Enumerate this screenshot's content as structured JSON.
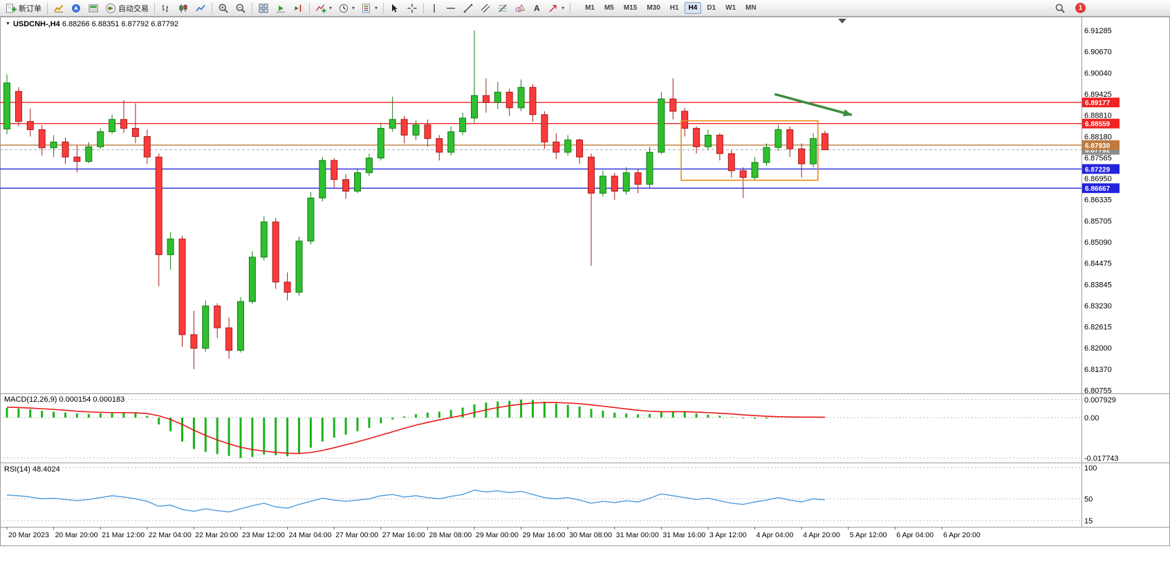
{
  "toolbar": {
    "buttons": {
      "new_order": "新订单",
      "autotrading": "自动交易"
    },
    "timeframes": [
      "M1",
      "M5",
      "M15",
      "M30",
      "H1",
      "H4",
      "D1",
      "W1",
      "MN"
    ],
    "active_timeframe": "H4",
    "notification_badge": "1"
  },
  "chart_title": {
    "symbol": "USDCNH-,H4",
    "ohlc": "6.88266 6.88351 6.87792 6.87792"
  },
  "indicators": {
    "macd_label": "MACD(12,26,9) 0.000154 0.000183",
    "rsi_label": "RSI(14) 48.4024"
  },
  "colors": {
    "up": "#2fbf2f",
    "up_stroke": "#157a15",
    "down": "#fb3b3b",
    "down_stroke": "#a61b1b",
    "resistance": "#f02222",
    "support": "#2323dd",
    "mid_line": "#c07a3e",
    "box": "#eb8a16",
    "arrow": "#3d8b3d",
    "macd_hist": "#19b219",
    "macd_signal": "#e81717",
    "rsi": "#4f9bdc",
    "bid_label_bg": "#8b8b8b"
  },
  "chart_data": {
    "type": "candlestick",
    "symbol": "USDCNH",
    "timeframe": "H4",
    "price_range": {
      "top": 6.9165,
      "bottom": 6.8068
    },
    "price_axis_labels": [
      "6.91285",
      "6.90670",
      "6.90040",
      "6.89425",
      "6.88810",
      "6.88180",
      "6.87565",
      "6.86950",
      "6.86335",
      "6.85705",
      "6.85090",
      "6.84475",
      "6.83845",
      "6.83230",
      "6.82615",
      "6.82000",
      "6.81370",
      "6.80755"
    ],
    "time_labels": [
      "20 Mar 2023",
      "20 Mar 20:00",
      "21 Mar 12:00",
      "22 Mar 04:00",
      "22 Mar 20:00",
      "23 Mar 12:00",
      "24 Mar 04:00",
      "27 Mar 00:00",
      "27 Mar 16:00",
      "28 Mar 08:00",
      "29 Mar 00:00",
      "29 Mar 16:00",
      "30 Mar 08:00",
      "31 Mar 00:00",
      "31 Mar 16:00",
      "3 Apr 12:00",
      "4 Apr 04:00",
      "4 Apr 20:00",
      "5 Apr 12:00",
      "6 Apr 04:00",
      "6 Apr 20:00"
    ],
    "candles": [
      [
        6.884,
        6.9,
        6.8825,
        6.8975
      ],
      [
        6.895,
        6.8962,
        6.8848,
        6.8862
      ],
      [
        6.8862,
        6.89,
        6.8818,
        6.8838
      ],
      [
        6.8838,
        6.8852,
        6.8762,
        6.8785
      ],
      [
        6.8785,
        6.8822,
        6.8758,
        6.8802
      ],
      [
        6.8802,
        6.8815,
        6.8738,
        6.8758
      ],
      [
        6.8758,
        6.8792,
        6.8713,
        6.8745
      ],
      [
        6.8745,
        6.8802,
        6.874,
        6.8788
      ],
      [
        6.8788,
        6.8842,
        6.8782,
        6.8832
      ],
      [
        6.8832,
        6.8882,
        6.8826,
        6.8868
      ],
      [
        6.8868,
        6.8925,
        6.8828,
        6.8842
      ],
      [
        6.8842,
        6.8915,
        6.8798,
        6.8818
      ],
      [
        6.8818,
        6.8838,
        6.8738,
        6.8758
      ],
      [
        6.8758,
        6.8768,
        6.838,
        6.8472
      ],
      [
        6.8472,
        6.8538,
        6.8428,
        6.8518
      ],
      [
        6.8518,
        6.8528,
        6.8202,
        6.8238
      ],
      [
        6.8238,
        6.8308,
        6.8137,
        6.8198
      ],
      [
        6.8198,
        6.8338,
        6.8188,
        6.8322
      ],
      [
        6.8322,
        6.833,
        6.8228,
        6.8258
      ],
      [
        6.8258,
        6.8288,
        6.8168,
        6.8192
      ],
      [
        6.8192,
        6.8348,
        6.8186,
        6.8335
      ],
      [
        6.8335,
        6.8482,
        6.8328,
        6.8465
      ],
      [
        6.8465,
        6.8585,
        6.8455,
        6.8568
      ],
      [
        6.8568,
        6.858,
        6.8372,
        6.8392
      ],
      [
        6.8392,
        6.842,
        6.8338,
        6.8362
      ],
      [
        6.8362,
        6.8525,
        6.8352,
        6.8512
      ],
      [
        6.8512,
        6.8655,
        6.8502,
        6.8638
      ],
      [
        6.8638,
        6.8758,
        6.8628,
        6.8748
      ],
      [
        6.8748,
        6.8755,
        6.8668,
        6.8692
      ],
      [
        6.8692,
        6.8708,
        6.8635,
        6.8658
      ],
      [
        6.8658,
        6.8725,
        6.8652,
        6.8712
      ],
      [
        6.8712,
        6.8768,
        6.8702,
        6.8755
      ],
      [
        6.8755,
        6.8858,
        6.8748,
        6.8842
      ],
      [
        6.8842,
        6.8935,
        6.8832,
        6.8868
      ],
      [
        6.8868,
        6.8878,
        6.8798,
        6.8822
      ],
      [
        6.8822,
        6.8865,
        6.8808,
        6.8852
      ],
      [
        6.8852,
        6.8868,
        6.8788,
        6.8812
      ],
      [
        6.8812,
        6.8822,
        6.8748,
        6.8772
      ],
      [
        6.8772,
        6.8848,
        6.8762,
        6.8832
      ],
      [
        6.8832,
        6.8888,
        6.8822,
        6.8872
      ],
      [
        6.8872,
        6.9128,
        6.8858,
        6.8938
      ],
      [
        6.8938,
        6.8988,
        6.8888,
        6.8918
      ],
      [
        6.8918,
        6.8978,
        6.8898,
        6.8948
      ],
      [
        6.8948,
        6.8958,
        6.8878,
        6.8902
      ],
      [
        6.8902,
        6.8985,
        6.8892,
        6.8962
      ],
      [
        6.8962,
        6.8972,
        6.8862,
        6.8882
      ],
      [
        6.8882,
        6.8892,
        6.8782,
        6.8802
      ],
      [
        6.8802,
        6.8828,
        6.8752,
        6.8772
      ],
      [
        6.8772,
        6.8822,
        6.8762,
        6.8808
      ],
      [
        6.8808,
        6.8812,
        6.8738,
        6.8758
      ],
      [
        6.8758,
        6.8768,
        6.844,
        6.8652
      ],
      [
        6.8652,
        6.8718,
        6.8642,
        6.8702
      ],
      [
        6.8702,
        6.8712,
        6.8633,
        6.8658
      ],
      [
        6.8658,
        6.8728,
        6.8648,
        6.8712
      ],
      [
        6.8712,
        6.8722,
        6.8652,
        6.8678
      ],
      [
        6.8678,
        6.8788,
        6.8668,
        6.8772
      ],
      [
        6.8772,
        6.8948,
        6.8766,
        6.8928
      ],
      [
        6.8928,
        6.8988,
        6.8868,
        6.8892
      ],
      [
        6.8892,
        6.8902,
        6.8818,
        6.8842
      ],
      [
        6.8842,
        6.8848,
        6.8768,
        6.8788
      ],
      [
        6.8788,
        6.8838,
        6.8778,
        6.8822
      ],
      [
        6.8822,
        6.8828,
        6.8748,
        6.8768
      ],
      [
        6.8768,
        6.8778,
        6.8698,
        6.8718
      ],
      [
        6.8718,
        6.8728,
        6.8638,
        6.8698
      ],
      [
        6.8698,
        6.8758,
        6.8688,
        6.8742
      ],
      [
        6.8742,
        6.8798,
        6.8732,
        6.8786
      ],
      [
        6.8786,
        6.8852,
        6.8776,
        6.8838
      ],
      [
        6.8838,
        6.8848,
        6.8758,
        6.8782
      ],
      [
        6.8782,
        6.8798,
        6.8698,
        6.8738
      ],
      [
        6.8738,
        6.8828,
        6.8728,
        6.8812
      ],
      [
        6.88266,
        6.88351,
        6.87792,
        6.87792
      ]
    ],
    "hlines": [
      {
        "price": 6.89177,
        "label": "6.89177",
        "color": "#f02222"
      },
      {
        "price": 6.88559,
        "label": "6.88559",
        "color": "#f02222"
      },
      {
        "price": 6.8793,
        "label": "6.87930",
        "color": "#c07a3e"
      },
      {
        "price": 6.87229,
        "label": "6.87229",
        "color": "#2323dd"
      },
      {
        "price": 6.86667,
        "label": "6.86667",
        "color": "#2323dd"
      }
    ],
    "bid": {
      "price": 6.87792,
      "label": "6.87792"
    },
    "annotations": {
      "rect": {
        "bar_start": 57.7,
        "bar_end": 69.4,
        "price_top": 6.8864,
        "price_bottom": 6.869
      },
      "arrow": {
        "bar_from": 65.7,
        "price_from": 6.8942,
        "bar_to": 72.3,
        "price_to": 6.8881
      }
    },
    "macd": {
      "name": "MACD(12,26,9)",
      "values_display": "0.000154 0.000183",
      "scale_labels": [
        "0.007929",
        "0.00",
        "-0.017743"
      ],
      "scale_values": [
        0.007929,
        0,
        -0.017743
      ],
      "histogram": [
        0.0042,
        0.004,
        0.0036,
        0.003,
        0.0026,
        0.0022,
        0.0018,
        0.0016,
        0.0018,
        0.0022,
        0.0024,
        0.002,
        0.0008,
        -0.003,
        -0.006,
        -0.0105,
        -0.0138,
        -0.015,
        -0.016,
        -0.0168,
        -0.0177,
        -0.0172,
        -0.0162,
        -0.0165,
        -0.017,
        -0.0155,
        -0.0132,
        -0.0105,
        -0.0088,
        -0.0075,
        -0.006,
        -0.0045,
        -0.0025,
        -0.0008,
        0.0005,
        0.0015,
        0.0022,
        0.0026,
        0.0034,
        0.0044,
        0.0058,
        0.0066,
        0.0071,
        0.0074,
        0.0079,
        0.0077,
        0.007,
        0.0062,
        0.0056,
        0.0049,
        0.0038,
        0.003,
        0.0022,
        0.0018,
        0.0014,
        0.0016,
        0.0024,
        0.0028,
        0.0024,
        0.0018,
        0.0013,
        0.0008,
        0.0002,
        -0.0003,
        -0.0005,
        -0.0004,
        0.0,
        0.0002,
        0.0001,
        0.0001,
        0.000154
      ],
      "signal": [
        0.0046,
        0.0044,
        0.0042,
        0.0039,
        0.0036,
        0.0032,
        0.0028,
        0.0025,
        0.0023,
        0.0022,
        0.0022,
        0.0021,
        0.0018,
        0.0008,
        -0.0008,
        -0.003,
        -0.0055,
        -0.0078,
        -0.0098,
        -0.0115,
        -0.013,
        -0.014,
        -0.0147,
        -0.0152,
        -0.0156,
        -0.0157,
        -0.0153,
        -0.0144,
        -0.0132,
        -0.0119,
        -0.0106,
        -0.0092,
        -0.0077,
        -0.0062,
        -0.0047,
        -0.0033,
        -0.0021,
        -0.001,
        0.0,
        0.001,
        0.0022,
        0.0034,
        0.0044,
        0.0052,
        0.0059,
        0.0064,
        0.0066,
        0.0066,
        0.0064,
        0.0061,
        0.0056,
        0.005,
        0.0044,
        0.0038,
        0.0032,
        0.0028,
        0.0026,
        0.0026,
        0.0026,
        0.0024,
        0.0022,
        0.0019,
        0.0016,
        0.0012,
        0.0009,
        0.0006,
        0.0004,
        0.0003,
        0.0002,
        0.0002,
        0.000183
      ]
    },
    "rsi": {
      "name": "RSI(14)",
      "value_display": "48.4024",
      "levels": [
        {
          "value": 100,
          "label": "100"
        },
        {
          "value": 50,
          "label": "50"
        },
        {
          "value": 15,
          "label": "15"
        }
      ],
      "values": [
        56,
        55,
        53,
        50,
        51,
        49,
        47,
        49,
        52,
        55,
        53,
        50,
        46,
        38,
        40,
        33,
        30,
        34,
        31,
        29,
        34,
        39,
        43,
        37,
        35,
        41,
        46,
        51,
        48,
        46,
        48,
        50,
        55,
        57,
        53,
        55,
        52,
        50,
        54,
        57,
        64,
        61,
        63,
        60,
        62,
        57,
        52,
        50,
        52,
        48,
        43,
        46,
        44,
        47,
        45,
        51,
        58,
        55,
        52,
        49,
        51,
        47,
        43,
        41,
        45,
        48,
        52,
        48,
        45,
        50,
        48.4
      ]
    }
  }
}
